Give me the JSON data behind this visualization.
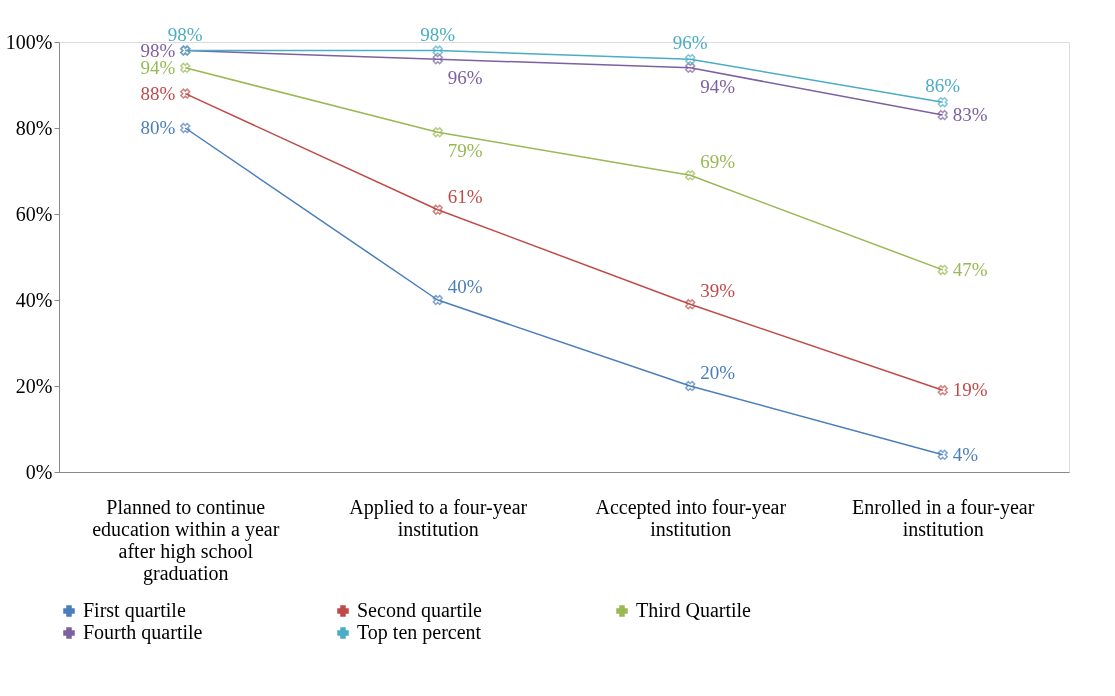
{
  "chart_data": {
    "type": "line",
    "categories": [
      "Planned to continue education within a year after high school graduation",
      "Applied to a four-year institution",
      "Accepted into four-year institution",
      "Enrolled in a four-year institution"
    ],
    "series": [
      {
        "name": "First quartile",
        "color": "#4a7ebb",
        "values": [
          80,
          40,
          20,
          4
        ],
        "value_labels": [
          "80%",
          "40%",
          "20%",
          "4%"
        ]
      },
      {
        "name": "Second quartile",
        "color": "#be4b48",
        "values": [
          88,
          61,
          39,
          19
        ],
        "value_labels": [
          "88%",
          "61%",
          "39%",
          "19%"
        ]
      },
      {
        "name": "Third Quartile",
        "color": "#98b954",
        "values": [
          94,
          79,
          69,
          47
        ],
        "value_labels": [
          "94%",
          "79%",
          "69%",
          "47%"
        ]
      },
      {
        "name": "Fourth quartile",
        "color": "#7d60a0",
        "values": [
          98,
          96,
          94,
          83
        ],
        "value_labels": [
          "98%",
          "96%",
          "94%",
          "83%"
        ]
      },
      {
        "name": "Top ten percent",
        "color": "#4bacc6",
        "values": [
          98,
          98,
          96,
          86
        ],
        "value_labels": [
          "98%",
          "98%",
          "96%",
          "86%"
        ]
      }
    ],
    "ylim": [
      0,
      100
    ],
    "yticks": [
      {
        "value": 0,
        "label": "0%"
      },
      {
        "value": 20,
        "label": "20%"
      },
      {
        "value": 40,
        "label": "40%"
      },
      {
        "value": 60,
        "label": "60%"
      },
      {
        "value": 80,
        "label": "80%"
      },
      {
        "value": 100,
        "label": "100%"
      }
    ],
    "marker": "cross",
    "legend": "bottom",
    "grid": false
  }
}
